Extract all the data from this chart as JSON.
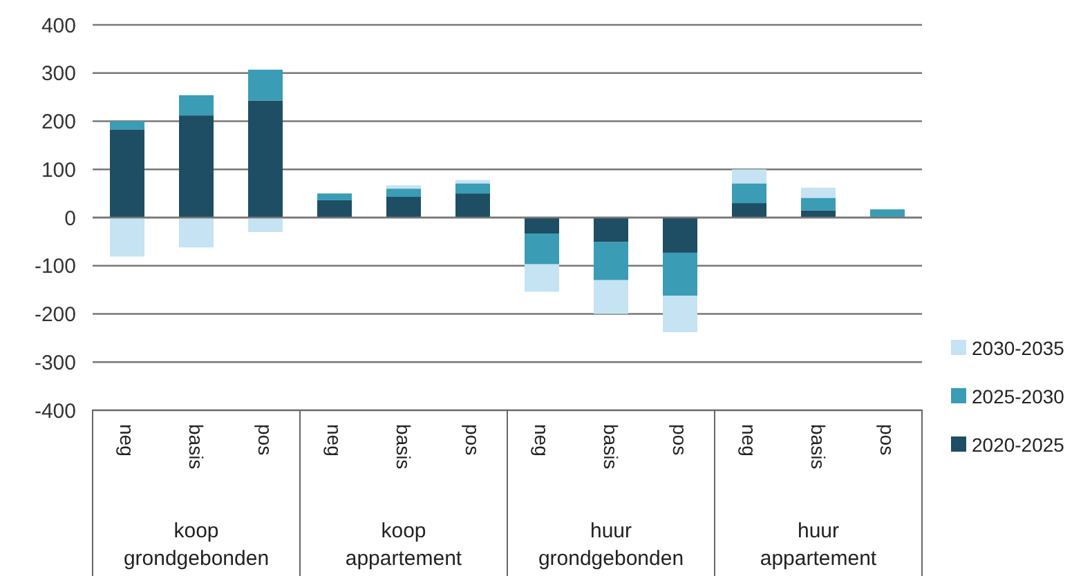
{
  "chart_data": {
    "type": "bar",
    "stacked": true,
    "categories": [
      "neg",
      "basis",
      "pos",
      "neg",
      "basis",
      "pos",
      "neg",
      "basis",
      "pos",
      "neg",
      "basis",
      "pos"
    ],
    "annotations": [
      "koop grondgebonden",
      "koop appartement",
      "huur grondgebonden",
      "huur appartement"
    ],
    "series": [
      {
        "name": "2020-2025",
        "color": "#1d4e63",
        "values": [
          183,
          212,
          243,
          36,
          43,
          50,
          -33,
          -51,
          -73,
          30,
          15,
          0
        ]
      },
      {
        "name": "2025-2030",
        "color": "#3a9cb5",
        "values": [
          17,
          42,
          64,
          14,
          17,
          21,
          -64,
          -79,
          -89,
          41,
          26,
          17
        ]
      },
      {
        "name": "2030-2035",
        "color": "#c5e3f3",
        "values": [
          -81,
          -62,
          -30,
          0,
          7,
          7,
          -57,
          -70,
          -76,
          29,
          21,
          0
        ]
      }
    ],
    "ylim": [
      -400,
      400
    ],
    "yticks": [
      -400,
      -300,
      -200,
      -100,
      0,
      100,
      200,
      300,
      400
    ],
    "grid": "y",
    "legend": "right"
  }
}
